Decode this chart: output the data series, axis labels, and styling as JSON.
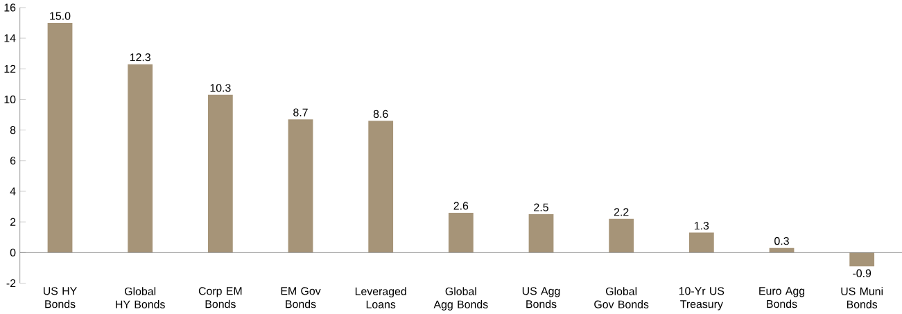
{
  "chart_data": {
    "type": "bar",
    "categories": [
      "US HY Bonds",
      "Global HY Bonds",
      "Corp EM Bonds",
      "EM Gov Bonds",
      "Leveraged Loans",
      "Global Agg Bonds",
      "US Agg Bonds",
      "Global Gov Bonds",
      "10-Yr US Treasury",
      "Euro Agg Bonds",
      "US Muni Bonds"
    ],
    "values": [
      15.0,
      12.3,
      10.3,
      8.7,
      8.6,
      2.6,
      2.5,
      2.2,
      1.3,
      0.3,
      -0.9
    ],
    "color": "#a69478",
    "ylim": [
      -2,
      16
    ],
    "yticks": [
      -2,
      0,
      2,
      4,
      6,
      8,
      10,
      12,
      14,
      16
    ],
    "value_labels": [
      "15.0",
      "12.3",
      "10.3",
      "8.7",
      "8.6",
      "2.6",
      "2.5",
      "2.2",
      "1.3",
      "0.3",
      "-0.9"
    ]
  }
}
